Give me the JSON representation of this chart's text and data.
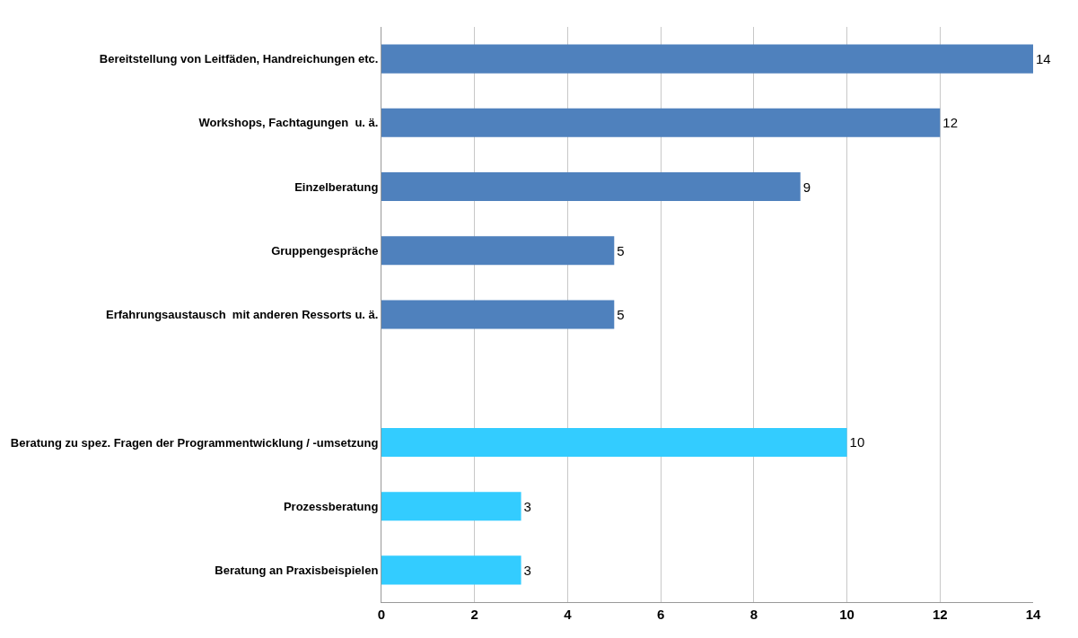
{
  "chart_data": {
    "type": "bar",
    "orientation": "horizontal",
    "categories": [
      "Bereitstellung von Leitfäden, Handreichungen etc.",
      "Workshops, Fachtagungen  u. ä.",
      "Einzelberatung",
      "Gruppengespräche",
      "Erfahrungsaustausch  mit anderen Ressorts u. ä.",
      null,
      "Beratung zu spez. Fragen der Programmentwicklung / -umsetzung",
      "Prozessberatung",
      "Beratung an Praxisbeispielen"
    ],
    "values": [
      14,
      12,
      9,
      5,
      5,
      null,
      10,
      3,
      3
    ],
    "colors": [
      "#4f81bd",
      "#4f81bd",
      "#4f81bd",
      "#4f81bd",
      "#4f81bd",
      null,
      "#33ccff",
      "#33ccff",
      "#33ccff"
    ],
    "data_labels": true,
    "xlim": [
      0,
      14
    ],
    "xticks": [
      0,
      2,
      4,
      6,
      8,
      10,
      12,
      14
    ],
    "grid": "x"
  }
}
